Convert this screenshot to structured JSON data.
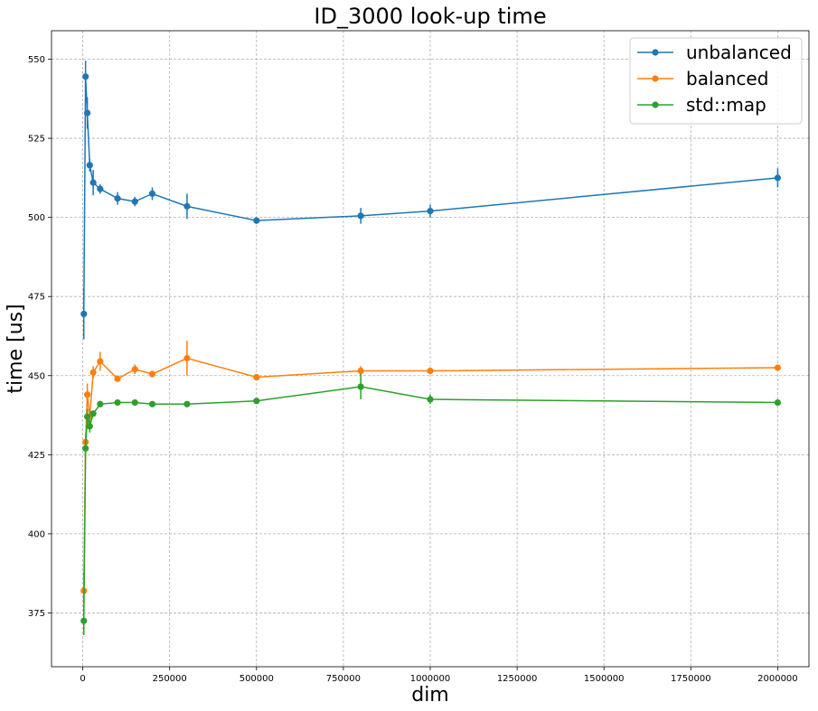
{
  "chart_data": {
    "type": "line",
    "title": "ID_3000 look-up time",
    "xlabel": "dim",
    "ylabel": "time [us]",
    "xlim": [
      -90000,
      2090000
    ],
    "ylim": [
      358,
      559
    ],
    "xticks": [
      0,
      250000,
      500000,
      750000,
      1000000,
      1250000,
      1500000,
      1750000,
      2000000
    ],
    "xtick_labels": [
      "0",
      "250000",
      "500000",
      "750000",
      "1000000",
      "1250000",
      "1500000",
      "1750000",
      "2000000"
    ],
    "yticks": [
      375,
      400,
      425,
      450,
      475,
      500,
      525,
      550
    ],
    "ytick_labels": [
      "375",
      "400",
      "425",
      "450",
      "475",
      "500",
      "525",
      "550"
    ],
    "grid": true,
    "error_bars": true,
    "legend_position": "top-right",
    "x": [
      3000,
      8000,
      13000,
      20000,
      30000,
      50000,
      100000,
      150000,
      200000,
      300000,
      500000,
      800000,
      1000000,
      2000000
    ],
    "series": [
      {
        "name": "unbalanced",
        "color": "#1f77b4",
        "values": [
          469.5,
          544.5,
          533,
          516.5,
          511,
          509,
          506,
          505,
          507.5,
          503.5,
          499,
          500.5,
          502,
          512.5
        ],
        "errors": [
          8,
          5,
          5,
          2,
          4,
          1.5,
          2,
          1.5,
          2,
          4,
          1,
          2.5,
          2,
          3
        ]
      },
      {
        "name": "balanced",
        "color": "#ff7f0e",
        "values": [
          382,
          429,
          444,
          437,
          451,
          454.5,
          449,
          452,
          450.5,
          455.5,
          449.5,
          451.5,
          451.5,
          452.5
        ],
        "errors": [
          6,
          3,
          3.5,
          2,
          2,
          3,
          0.8,
          1.5,
          0.8,
          5.5,
          0.5,
          1.5,
          0.5,
          0.5
        ]
      },
      {
        "name": "std::map",
        "color": "#2ca02c",
        "values": [
          372.5,
          427,
          437,
          434,
          438,
          441,
          441.5,
          441.5,
          441,
          441,
          442,
          446.5,
          442.5,
          441.5
        ],
        "errors": [
          4.5,
          2.5,
          2.5,
          2,
          1,
          1,
          0.7,
          0.7,
          0.5,
          0.5,
          1,
          4,
          1.5,
          0.8
        ]
      }
    ]
  }
}
